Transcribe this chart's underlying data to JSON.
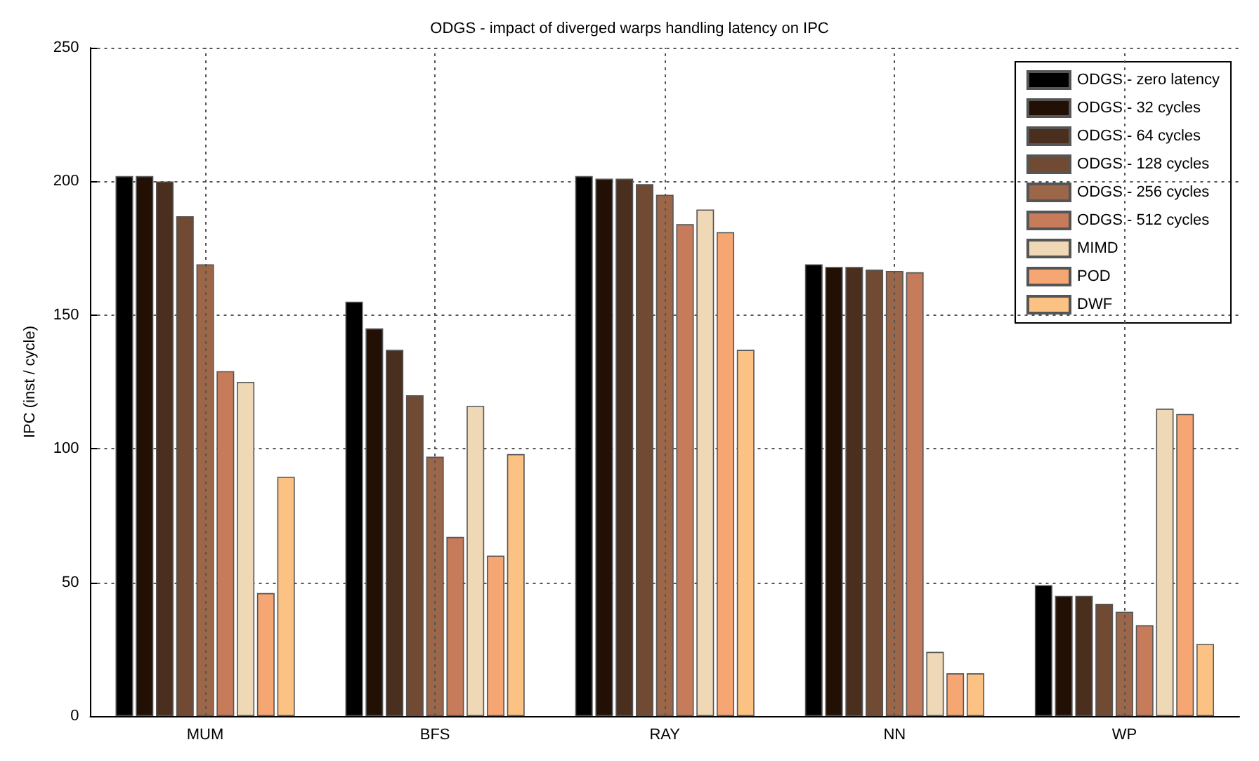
{
  "chart_data": {
    "type": "bar",
    "title": "ODGS - impact of diverged warps handling latency on IPC",
    "ylabel": "IPC (inst / cycle)",
    "categories": [
      "MUM",
      "BFS",
      "RAY",
      "NN",
      "WP"
    ],
    "series": [
      {
        "name": "ODGS - zero latency",
        "color": "#000000",
        "values": [
          202,
          155,
          202,
          169,
          49
        ]
      },
      {
        "name": "ODGS - 32 cycles",
        "color": "#211003",
        "values": [
          202,
          145,
          201,
          168,
          45
        ]
      },
      {
        "name": "ODGS - 64 cycles",
        "color": "#4a2f1f",
        "values": [
          200,
          137,
          201,
          168,
          45
        ]
      },
      {
        "name": "ODGS - 128 cycles",
        "color": "#714a33",
        "values": [
          187,
          120,
          199,
          167,
          42
        ]
      },
      {
        "name": "ODGS - 256 cycles",
        "color": "#9c6649",
        "values": [
          169,
          97,
          195,
          166.5,
          39
        ]
      },
      {
        "name": "ODGS - 512 cycles",
        "color": "#c67c5a",
        "values": [
          129,
          67,
          184,
          166,
          34
        ]
      },
      {
        "name": "MIMD",
        "color": "#efd8b5",
        "values": [
          125,
          116,
          189.5,
          24,
          115
        ]
      },
      {
        "name": "POD",
        "color": "#f6a672",
        "values": [
          46,
          60,
          181,
          16,
          113
        ]
      },
      {
        "name": "DWF",
        "color": "#fbc283",
        "values": [
          89.5,
          98,
          137,
          16,
          27
        ]
      }
    ],
    "ylim": [
      0,
      250
    ],
    "yticks": [
      0,
      50,
      100,
      150,
      200,
      250
    ],
    "grid": true,
    "legend": "top right"
  }
}
